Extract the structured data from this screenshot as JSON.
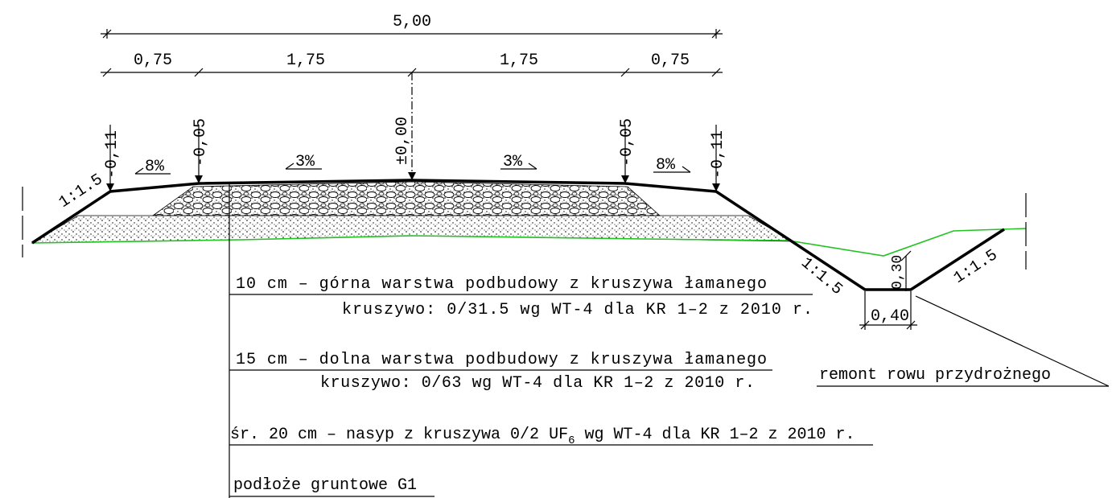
{
  "dimensions": {
    "total": "5,00",
    "segments": [
      "0,75",
      "1,75",
      "1,75",
      "0,75"
    ]
  },
  "elevations": [
    "-0,11",
    "-0,05",
    "±0,00",
    "-0,05",
    "-0,11"
  ],
  "slopes": [
    "8%",
    "3%",
    "3%",
    "8%"
  ],
  "side_slopes": [
    "1:1.5",
    "1:1.5",
    "1:1.5"
  ],
  "ditch": {
    "depth": "0,30",
    "width": "0,40",
    "label": "remont rowu przydrożnego"
  },
  "layers": [
    {
      "title": "10 cm – górna warstwa podbudowy z kruszywa łamanego",
      "spec": "kruszywo: 0/31.5 wg WT-4 dla KR 1–2 z 2010 r."
    },
    {
      "title": "15 cm – dolna warstwa podbudowy z kruszywa łamanego",
      "spec": "kruszywo: 0/63 wg WT-4 dla KR 1–2 z 2010 r."
    },
    {
      "text_before": "śr. 20 cm – nasyp z kruszywa 0/2 UF",
      "subscript": "6",
      "text_after": " wg WT-4 dla KR 1–2 z 2010 r."
    }
  ],
  "subgrade": "podłoże gruntowe G1"
}
